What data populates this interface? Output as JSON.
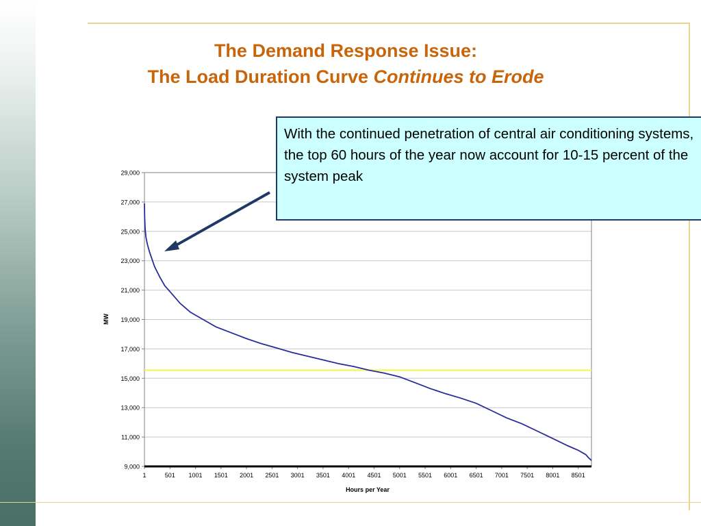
{
  "slide": {
    "title_line1": "The Demand Response Issue:",
    "title_line2": "The Load Duration Curve",
    "title_line2_italic": "Continues to Erode",
    "callout_text": "With the continued penetration of central air conditioning systems, the top 60 hours of the year now account for 10-15 percent of the system peak",
    "colors": {
      "title": "#c8640a",
      "callout_bg": "#ccffff",
      "callout_border": "#1f3864",
      "arrow": "#1f3864",
      "curve": "#2a2a9a",
      "threshold": "#f5f56a"
    }
  },
  "chart_data": {
    "type": "line",
    "title": "",
    "xlabel": "Hours per Year",
    "ylabel": "MW",
    "ylim": [
      9000,
      29000
    ],
    "xlim": [
      1,
      8760
    ],
    "yticks": [
      "29,000",
      "27,000",
      "25,000",
      "23,000",
      "21,000",
      "19,000",
      "17,000",
      "15,000",
      "13,000",
      "11,000",
      "9,000"
    ],
    "xticks": [
      "1",
      "501",
      "1001",
      "1501",
      "2001",
      "2501",
      "3001",
      "3501",
      "4001",
      "4501",
      "5001",
      "5501",
      "6001",
      "6501",
      "7001",
      "7501",
      "8001",
      "8501"
    ],
    "grid": true,
    "legend": "none",
    "series": [
      {
        "x": [
          1,
          5,
          15,
          30,
          60,
          100,
          150,
          200,
          300,
          400,
          500,
          600,
          700,
          800,
          900,
          1000,
          1200,
          1400,
          1700,
          2000,
          2300,
          2600,
          2900,
          3200,
          3500,
          3800,
          4100,
          4400,
          4700,
          5000,
          5300,
          5600,
          5900,
          6200,
          6500,
          6800,
          7100,
          7400,
          7700,
          8000,
          8300,
          8500,
          8600,
          8650,
          8700,
          8730,
          8760
        ],
        "y": [
          26900,
          26000,
          25200,
          24600,
          24100,
          23600,
          23100,
          22600,
          21900,
          21300,
          20900,
          20500,
          20100,
          19800,
          19500,
          19300,
          18900,
          18500,
          18100,
          17700,
          17350,
          17050,
          16750,
          16500,
          16250,
          16000,
          15800,
          15550,
          15350,
          15100,
          14700,
          14300,
          13950,
          13650,
          13300,
          12800,
          12300,
          11900,
          11400,
          10900,
          10400,
          10100,
          9900,
          9800,
          9600,
          9500,
          9400
        ]
      }
    ],
    "reference_line": {
      "y": 15550
    }
  }
}
